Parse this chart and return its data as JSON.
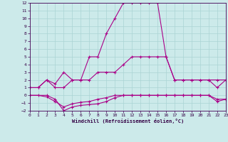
{
  "xlabel": "Windchill (Refroidissement éolien,°C)",
  "background_color": "#cceaea",
  "grid_color": "#aad4d4",
  "line_color": "#aa0088",
  "xlim": [
    0,
    23
  ],
  "ylim": [
    -2,
    12
  ],
  "xticks": [
    0,
    1,
    2,
    3,
    4,
    5,
    6,
    7,
    8,
    9,
    10,
    11,
    12,
    13,
    14,
    15,
    16,
    17,
    18,
    19,
    20,
    21,
    22,
    23
  ],
  "yticks": [
    -2,
    -1,
    0,
    1,
    2,
    3,
    4,
    5,
    6,
    7,
    8,
    9,
    10,
    11,
    12
  ],
  "line1_x": [
    0,
    1,
    2,
    3,
    4,
    5,
    6,
    7,
    8,
    9,
    10,
    11,
    12,
    13,
    14,
    15,
    16,
    17,
    18,
    19,
    20,
    21,
    22,
    23
  ],
  "line1_y": [
    1,
    1,
    2,
    1,
    1,
    2,
    2,
    5,
    5,
    8,
    10,
    12,
    12,
    12,
    12,
    12,
    5,
    2,
    2,
    2,
    2,
    2,
    2,
    2
  ],
  "line2_x": [
    0,
    2,
    3,
    4,
    5,
    6,
    7,
    8,
    9,
    10,
    11,
    12,
    13,
    14,
    15,
    16,
    17,
    18,
    19,
    20,
    21,
    22,
    23
  ],
  "line2_y": [
    0,
    0,
    -0.5,
    -2,
    -1.5,
    -1.3,
    -1.2,
    -1.1,
    -0.8,
    -0.3,
    0,
    0,
    0,
    0,
    0,
    0,
    0,
    0,
    0,
    0,
    0,
    -0.8,
    -0.5
  ],
  "line3_x": [
    0,
    1,
    2,
    3,
    4,
    5,
    6,
    7,
    8,
    9,
    10,
    11,
    12,
    13,
    14,
    15,
    16,
    17,
    18,
    19,
    20,
    21,
    22,
    23
  ],
  "line3_y": [
    1,
    1,
    2,
    1.5,
    3,
    2,
    2,
    2,
    3,
    3,
    3,
    4,
    5,
    5,
    5,
    5,
    5,
    2,
    2,
    2,
    2,
    2,
    1,
    2
  ],
  "line4_x": [
    0,
    1,
    2,
    3,
    4,
    5,
    6,
    7,
    8,
    9,
    10,
    11,
    12,
    13,
    14,
    15,
    16,
    17,
    18,
    19,
    20,
    21,
    22,
    23
  ],
  "line4_y": [
    0,
    0,
    -0.2,
    -0.8,
    -1.5,
    -1.1,
    -0.9,
    -0.8,
    -0.5,
    -0.3,
    0,
    0,
    0,
    0,
    0,
    0,
    0,
    0,
    0,
    0,
    0,
    0,
    -0.5,
    -0.5
  ]
}
